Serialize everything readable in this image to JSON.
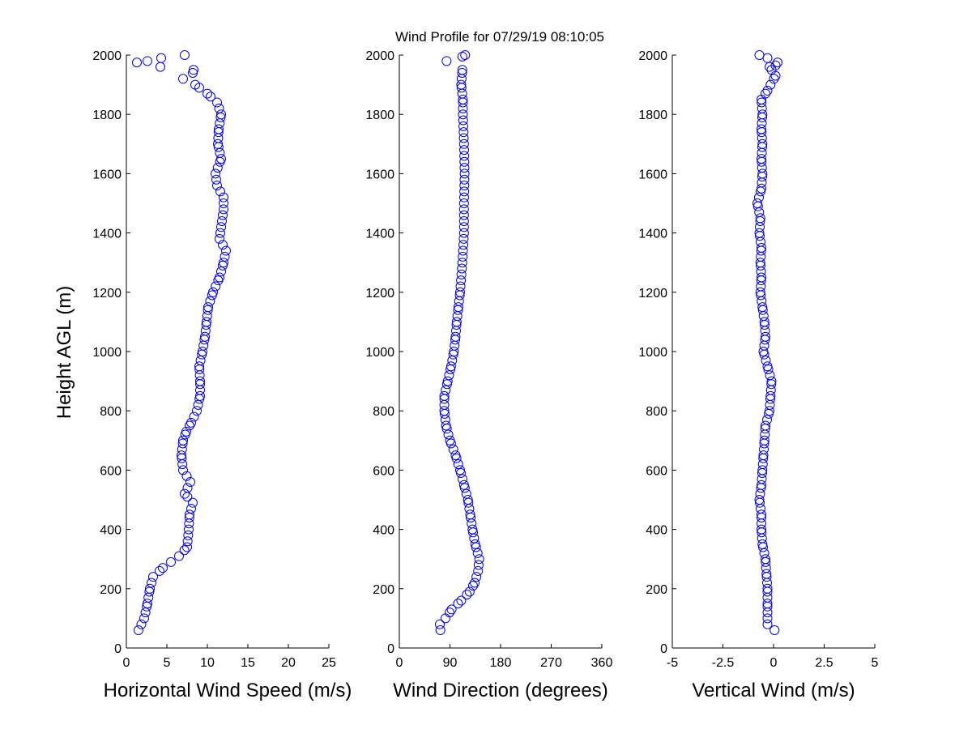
{
  "figure": {
    "title": "Wind Profile for  07/29/19 08:10:05",
    "ylabel": "Height AGL (m)",
    "marker_color": "#0000ff"
  },
  "chart_data": [
    {
      "type": "scatter",
      "name": "horizontal-wind-speed",
      "xlabel": "Horizontal Wind Speed (m/s)",
      "xlim": [
        0,
        25
      ],
      "ylim": [
        0,
        2000
      ],
      "xticks": [
        0,
        5,
        10,
        15,
        20,
        25
      ],
      "xticklabels": [
        "0",
        "5",
        "10",
        "15",
        "20",
        "25"
      ],
      "yticks": [
        0,
        200,
        400,
        600,
        800,
        1000,
        1200,
        1400,
        1600,
        1800,
        2000
      ],
      "yticklabels": [
        "0",
        "200",
        "400",
        "600",
        "800",
        "1000",
        "1200",
        "1400",
        "1600",
        "1800",
        "2000"
      ],
      "grid": false,
      "profile": [
        [
          60,
          1.5
        ],
        [
          100,
          2.2
        ],
        [
          150,
          2.6
        ],
        [
          200,
          2.9
        ],
        [
          240,
          3.3
        ],
        [
          270,
          4.5
        ],
        [
          290,
          5.5
        ],
        [
          310,
          6.5
        ],
        [
          340,
          7.5
        ],
        [
          400,
          7.7
        ],
        [
          450,
          7.8
        ],
        [
          490,
          8.2
        ],
        [
          520,
          7.2
        ],
        [
          560,
          7.9
        ],
        [
          600,
          7.0
        ],
        [
          650,
          6.8
        ],
        [
          700,
          7.0
        ],
        [
          730,
          7.4
        ],
        [
          760,
          8.0
        ],
        [
          800,
          8.7
        ],
        [
          850,
          9.1
        ],
        [
          900,
          9.1
        ],
        [
          950,
          9.0
        ],
        [
          1000,
          9.4
        ],
        [
          1050,
          9.7
        ],
        [
          1100,
          9.9
        ],
        [
          1150,
          10.1
        ],
        [
          1200,
          10.7
        ],
        [
          1250,
          11.5
        ],
        [
          1300,
          12.0
        ],
        [
          1340,
          12.3
        ],
        [
          1380,
          11.5
        ],
        [
          1420,
          11.7
        ],
        [
          1480,
          12.0
        ],
        [
          1520,
          12.0
        ],
        [
          1560,
          11.2
        ],
        [
          1600,
          11.0
        ],
        [
          1650,
          11.7
        ],
        [
          1700,
          11.3
        ],
        [
          1750,
          11.4
        ],
        [
          1800,
          11.7
        ],
        [
          1840,
          11.2
        ],
        [
          1870,
          10.0
        ],
        [
          1900,
          8.5
        ],
        [
          1920,
          7.0
        ],
        [
          1940,
          8.2
        ]
      ],
      "points": [
        [
          1.3,
          1975
        ],
        [
          2.6,
          1980
        ],
        [
          4.3,
          1990
        ],
        [
          4.2,
          1960
        ],
        [
          7.2,
          2000
        ],
        [
          8.3,
          1950
        ]
      ]
    },
    {
      "type": "scatter",
      "name": "wind-direction",
      "xlabel": "Wind Direction (degrees)",
      "xlim": [
        0,
        360
      ],
      "ylim": [
        0,
        2000
      ],
      "xticks": [
        0,
        90,
        180,
        270,
        360
      ],
      "xticklabels": [
        "0",
        "90",
        "180",
        "270",
        "360"
      ],
      "yticks": [
        0,
        200,
        400,
        600,
        800,
        1000,
        1200,
        1400,
        1600,
        1800,
        2000
      ],
      "yticklabels": [
        "0",
        "200",
        "400",
        "600",
        "800",
        "1000",
        "1200",
        "1400",
        "1600",
        "1800",
        "2000"
      ],
      "grid": false,
      "profile": [
        [
          60,
          73
        ],
        [
          80,
          72
        ],
        [
          100,
          82
        ],
        [
          130,
          93
        ],
        [
          160,
          110
        ],
        [
          190,
          125
        ],
        [
          220,
          134
        ],
        [
          260,
          140
        ],
        [
          300,
          142
        ],
        [
          350,
          135
        ],
        [
          400,
          130
        ],
        [
          450,
          126
        ],
        [
          500,
          122
        ],
        [
          550,
          115
        ],
        [
          600,
          108
        ],
        [
          650,
          100
        ],
        [
          700,
          90
        ],
        [
          750,
          83
        ],
        [
          800,
          80
        ],
        [
          850,
          80
        ],
        [
          900,
          86
        ],
        [
          950,
          92
        ],
        [
          1000,
          97
        ],
        [
          1050,
          100
        ],
        [
          1100,
          102
        ],
        [
          1150,
          105
        ],
        [
          1200,
          108
        ],
        [
          1300,
          112
        ],
        [
          1400,
          115
        ],
        [
          1500,
          115
        ],
        [
          1600,
          116
        ],
        [
          1700,
          115
        ],
        [
          1800,
          113
        ],
        [
          1850,
          113
        ],
        [
          1900,
          110
        ],
        [
          1950,
          112
        ]
      ],
      "points": [
        [
          84,
          1980
        ],
        [
          112,
          1995
        ],
        [
          117,
          2000
        ]
      ]
    },
    {
      "type": "scatter",
      "name": "vertical-wind",
      "xlabel": "Vertical Wind (m/s)",
      "xlim": [
        -5,
        5
      ],
      "ylim": [
        0,
        2000
      ],
      "xticks": [
        -5,
        -2.5,
        0,
        2.5,
        5
      ],
      "xticklabels": [
        "-5",
        "-2.5",
        "0",
        "2.5",
        "5"
      ],
      "yticks": [
        0,
        200,
        400,
        600,
        800,
        1000,
        1200,
        1400,
        1600,
        1800,
        2000
      ],
      "yticklabels": [
        "0",
        "200",
        "400",
        "600",
        "800",
        "1000",
        "1200",
        "1400",
        "1600",
        "1800",
        "2000"
      ],
      "grid": false,
      "profile": [
        [
          80,
          -0.3
        ],
        [
          150,
          -0.3
        ],
        [
          200,
          -0.3
        ],
        [
          250,
          -0.35
        ],
        [
          300,
          -0.4
        ],
        [
          350,
          -0.55
        ],
        [
          400,
          -0.6
        ],
        [
          450,
          -0.6
        ],
        [
          500,
          -0.7
        ],
        [
          550,
          -0.6
        ],
        [
          600,
          -0.55
        ],
        [
          650,
          -0.5
        ],
        [
          700,
          -0.45
        ],
        [
          750,
          -0.4
        ],
        [
          800,
          -0.2
        ],
        [
          850,
          -0.15
        ],
        [
          900,
          -0.1
        ],
        [
          950,
          -0.3
        ],
        [
          1000,
          -0.5
        ],
        [
          1050,
          -0.4
        ],
        [
          1100,
          -0.45
        ],
        [
          1150,
          -0.55
        ],
        [
          1200,
          -0.65
        ],
        [
          1250,
          -0.6
        ],
        [
          1300,
          -0.65
        ],
        [
          1350,
          -0.6
        ],
        [
          1400,
          -0.7
        ],
        [
          1450,
          -0.65
        ],
        [
          1500,
          -0.8
        ],
        [
          1550,
          -0.6
        ],
        [
          1600,
          -0.55
        ],
        [
          1650,
          -0.6
        ],
        [
          1700,
          -0.55
        ],
        [
          1750,
          -0.6
        ],
        [
          1800,
          -0.55
        ],
        [
          1850,
          -0.6
        ],
        [
          1880,
          -0.3
        ],
        [
          1900,
          -0.15
        ],
        [
          1930,
          0.1
        ],
        [
          1960,
          -0.2
        ]
      ],
      "points": [
        [
          0.05,
          60
        ],
        [
          -0.7,
          2000
        ],
        [
          -0.3,
          1990
        ],
        [
          0.2,
          1975
        ],
        [
          0.1,
          1965
        ]
      ]
    }
  ]
}
